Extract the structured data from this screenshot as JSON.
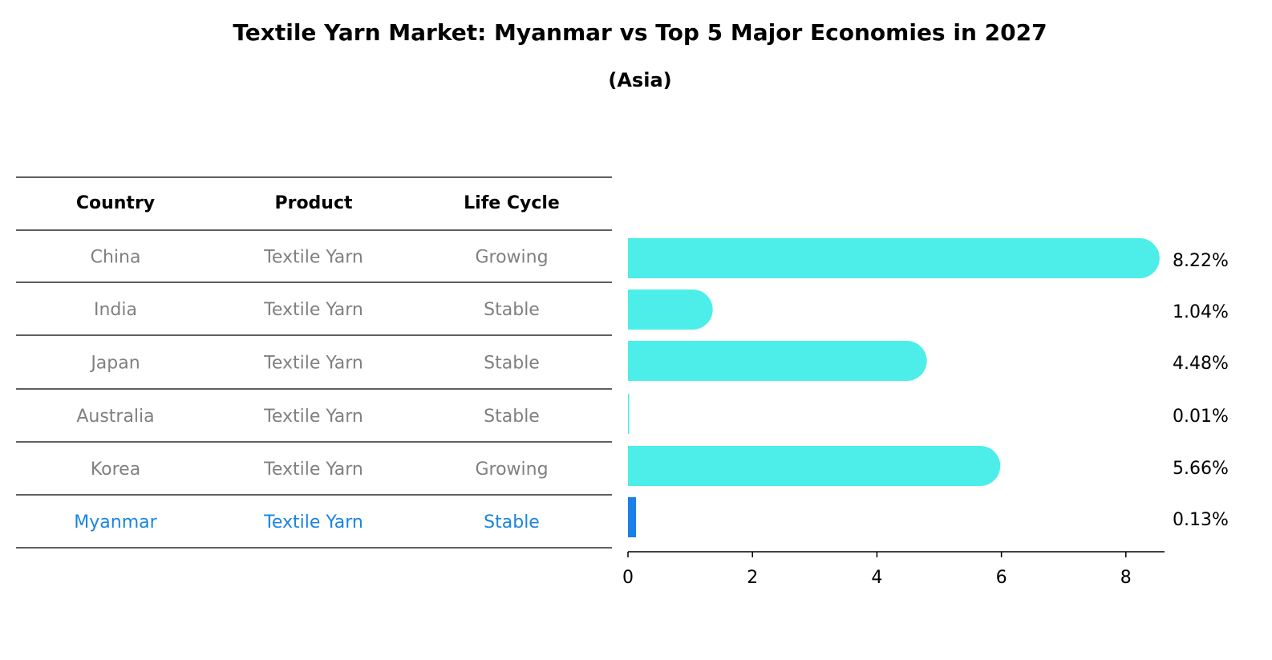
{
  "chart_data": {
    "type": "bar",
    "title": "Textile Yarn Market: Myanmar vs Top 5 Major Economies in 2027",
    "subtitle": "(Asia)",
    "table": {
      "columns": [
        "Country",
        "Product",
        "Life Cycle"
      ],
      "rows": [
        [
          "China",
          "Textile Yarn",
          "Growing"
        ],
        [
          "India",
          "Textile Yarn",
          "Stable"
        ],
        [
          "Japan",
          "Textile Yarn",
          "Stable"
        ],
        [
          "Australia",
          "Textile Yarn",
          "Stable"
        ],
        [
          "Korea",
          "Textile Yarn",
          "Growing"
        ],
        [
          "Myanmar",
          "Textile Yarn",
          "Stable"
        ]
      ]
    },
    "categories": [
      "China",
      "India",
      "Japan",
      "Australia",
      "Korea",
      "Myanmar"
    ],
    "values": [
      8.22,
      1.04,
      4.48,
      0.01,
      5.66,
      0.13
    ],
    "value_labels": [
      "8.22%",
      "1.04%",
      "4.48%",
      "0.01%",
      "5.66%",
      "0.13%"
    ],
    "xticks": [
      0,
      2,
      4,
      6,
      8
    ],
    "xlim": [
      0,
      8.6
    ],
    "highlight": "Myanmar",
    "colors": {
      "bar": "#4deee9",
      "highlight_bar": "#1a7fe8",
      "text": "#808080",
      "highlight_text": "#1a85e0"
    }
  }
}
